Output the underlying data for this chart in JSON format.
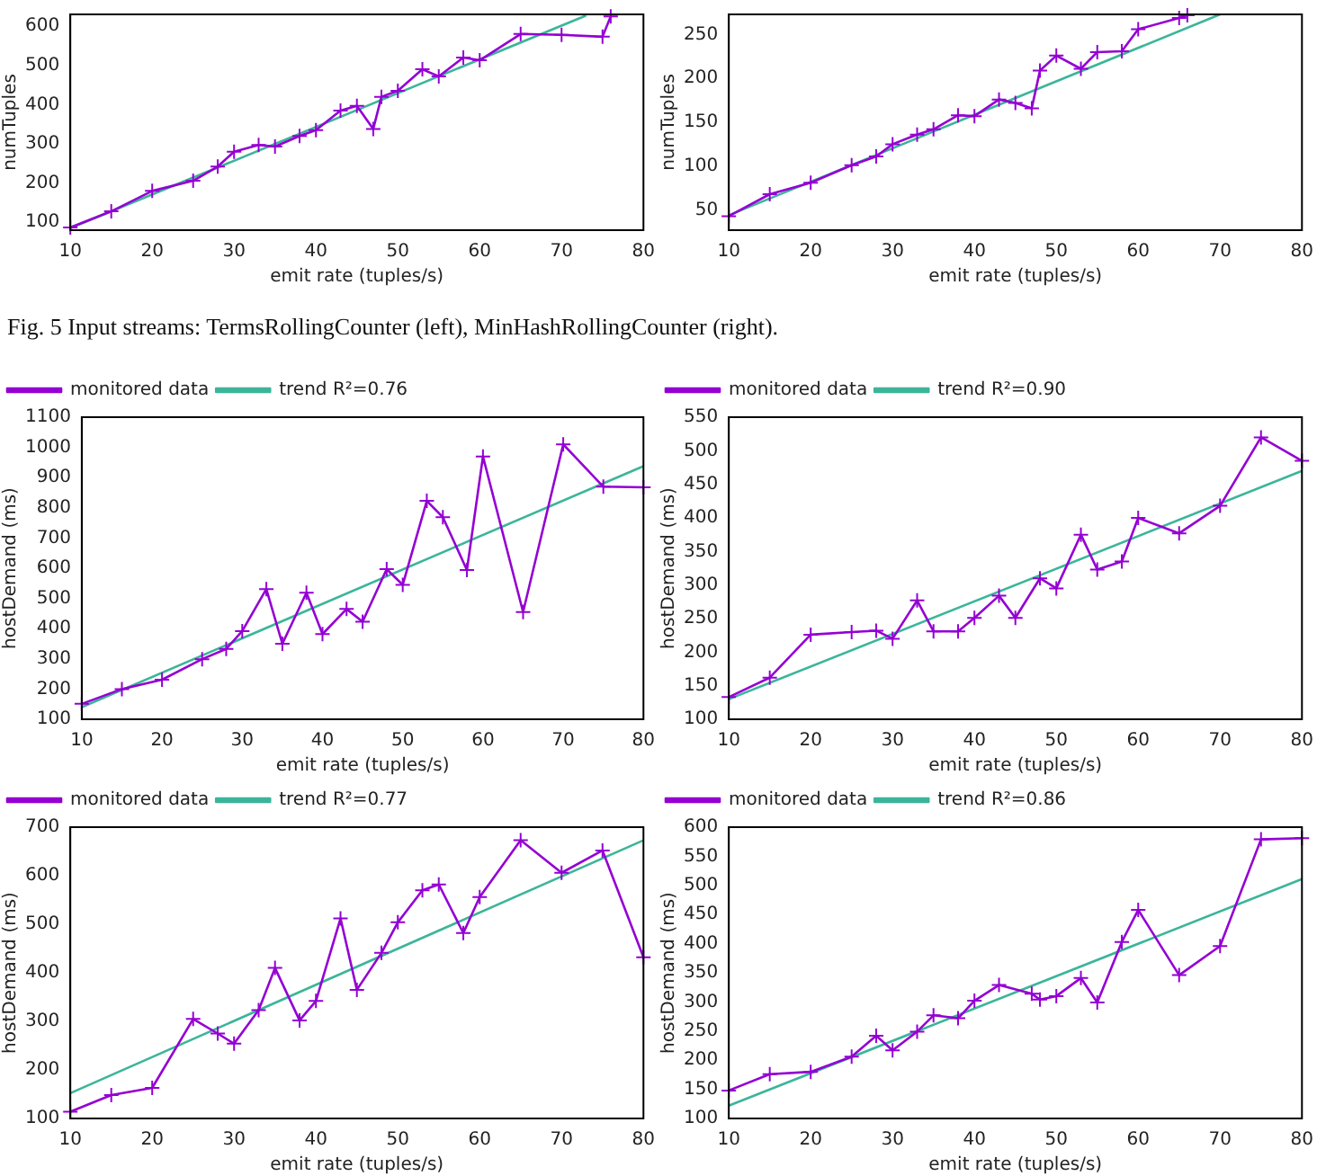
{
  "chart_data": [
    {
      "type": "line",
      "xlabel": "emit rate (tuples/s)",
      "ylabel": "numTuples",
      "xlim": [
        10,
        80
      ],
      "xticks": [
        10,
        20,
        30,
        40,
        50,
        60,
        70,
        80
      ],
      "ylim": [
        80,
        630
      ],
      "yticks": [
        100,
        200,
        300,
        400,
        500,
        600
      ],
      "grid": false,
      "legend": false,
      "line_style": "solid",
      "annotations": [
        "Fig. 5 Input streams: TermsRollingCounter (left), MinHashRollingCounter (right)."
      ],
      "series": [
        {
          "color": "#9400d3",
          "marker": "cross",
          "x": [
            10,
            15,
            20,
            25,
            28,
            30,
            33,
            35,
            38,
            40,
            43,
            45,
            47,
            48,
            50,
            53,
            55,
            58,
            60,
            65,
            70,
            75,
            76
          ],
          "values": [
            87,
            128,
            180,
            206,
            242,
            280,
            297,
            293,
            320,
            335,
            385,
            397,
            338,
            420,
            435,
            490,
            472,
            520,
            513,
            580,
            578,
            573,
            625
          ]
        },
        {
          "color": "#3cb59a",
          "marker": "none",
          "x": [
            10,
            73
          ],
          "values": [
            85,
            627
          ]
        }
      ]
    },
    {
      "type": "line",
      "xlabel": "emit rate (tuples/s)",
      "ylabel": "numTuples",
      "xlim": [
        10,
        80
      ],
      "xticks": [
        10,
        20,
        30,
        40,
        50,
        60,
        70,
        80
      ],
      "ylim": [
        27,
        273
      ],
      "yticks": [
        50,
        100,
        150,
        200,
        250
      ],
      "grid": false,
      "legend": false,
      "line_style": "solid",
      "series": [
        {
          "color": "#9400d3",
          "marker": "cross",
          "x": [
            10,
            15,
            20,
            25,
            28,
            30,
            33,
            35,
            38,
            40,
            43,
            45,
            47,
            48,
            50,
            53,
            55,
            58,
            60,
            65,
            66
          ],
          "values": [
            43,
            68,
            81,
            101,
            111,
            125,
            136,
            142,
            158,
            157,
            176,
            172,
            166,
            209,
            226,
            211,
            230,
            231,
            256,
            269,
            272
          ]
        },
        {
          "color": "#3cb59a",
          "marker": "none",
          "x": [
            10,
            70
          ],
          "values": [
            44,
            273
          ]
        }
      ]
    },
    {
      "type": "line",
      "xlabel": "emit rate (tuples/s)",
      "ylabel": "hostDemand (ms)",
      "xlim": [
        10,
        80
      ],
      "xticks": [
        10,
        20,
        30,
        40,
        50,
        60,
        70,
        80
      ],
      "ylim": [
        100,
        1100
      ],
      "yticks": [
        100,
        200,
        300,
        400,
        500,
        600,
        700,
        800,
        900,
        1000,
        1100
      ],
      "grid": false,
      "legend": "top left",
      "line_style": "solid",
      "series": [
        {
          "name": "monitored data",
          "color": "#9400d3",
          "marker": "cross",
          "x": [
            10,
            15,
            20,
            25,
            28,
            30,
            33,
            35,
            38,
            40,
            43,
            45,
            48,
            50,
            53,
            55,
            58,
            60,
            65,
            70,
            75,
            80
          ],
          "values": [
            151,
            200,
            231,
            299,
            333,
            392,
            531,
            350,
            519,
            382,
            465,
            423,
            597,
            545,
            823,
            769,
            594,
            970,
            455,
            1010,
            870,
            868
          ]
        },
        {
          "name": "trend R²=0.76",
          "color": "#3cb59a",
          "marker": "none",
          "x": [
            10,
            80
          ],
          "values": [
            140,
            938
          ]
        }
      ]
    },
    {
      "type": "line",
      "xlabel": "emit rate (tuples/s)",
      "ylabel": "hostDemand (ms)",
      "xlim": [
        10,
        80
      ],
      "xticks": [
        10,
        20,
        30,
        40,
        50,
        60,
        70,
        80
      ],
      "ylim": [
        100,
        550
      ],
      "yticks": [
        100,
        150,
        200,
        250,
        300,
        350,
        400,
        450,
        500,
        550
      ],
      "grid": false,
      "legend": "top left",
      "line_style": "solid",
      "series": [
        {
          "name": "monitored data",
          "color": "#9400d3",
          "marker": "cross",
          "x": [
            10,
            15,
            20,
            25,
            28,
            30,
            33,
            35,
            38,
            40,
            43,
            45,
            48,
            50,
            53,
            55,
            58,
            60,
            65,
            70,
            75,
            80
          ],
          "values": [
            133,
            162,
            226,
            230,
            232,
            220,
            277,
            231,
            231,
            251,
            284,
            251,
            310,
            295,
            375,
            323,
            335,
            400,
            377,
            418,
            520,
            485
          ]
        },
        {
          "name": "trend R²=0.90",
          "color": "#3cb59a",
          "marker": "none",
          "x": [
            10,
            80
          ],
          "values": [
            130,
            470
          ]
        }
      ]
    },
    {
      "type": "line",
      "xlabel": "emit rate (tuples/s)",
      "ylabel": "hostDemand (ms)",
      "xlim": [
        10,
        80
      ],
      "xticks": [
        10,
        20,
        30,
        40,
        50,
        60,
        70,
        80
      ],
      "ylim": [
        100,
        700
      ],
      "yticks": [
        100,
        200,
        300,
        400,
        500,
        600,
        700
      ],
      "grid": false,
      "legend": "top left",
      "line_style": "solid",
      "series": [
        {
          "name": "monitored data",
          "color": "#9400d3",
          "marker": "cross",
          "x": [
            10,
            15,
            20,
            25,
            28,
            30,
            33,
            35,
            38,
            40,
            43,
            45,
            48,
            50,
            53,
            55,
            58,
            60,
            65,
            70,
            75,
            80
          ],
          "values": [
            114,
            148,
            163,
            305,
            275,
            254,
            323,
            410,
            302,
            342,
            512,
            365,
            441,
            504,
            570,
            582,
            482,
            556,
            673,
            606,
            652,
            432
          ]
        },
        {
          "name": "trend R²=0.77",
          "color": "#3cb59a",
          "marker": "none",
          "x": [
            10,
            80
          ],
          "values": [
            152,
            673
          ]
        }
      ]
    },
    {
      "type": "line",
      "xlabel": "emit rate (tuples/s)",
      "ylabel": "hostDemand (ms)",
      "xlim": [
        10,
        80
      ],
      "xticks": [
        10,
        20,
        30,
        40,
        50,
        60,
        70,
        80
      ],
      "ylim": [
        100,
        600
      ],
      "yticks": [
        100,
        150,
        200,
        250,
        300,
        350,
        400,
        450,
        500,
        550,
        600
      ],
      "grid": false,
      "legend": "top left",
      "line_style": "solid",
      "series": [
        {
          "name": "monitored data",
          "color": "#9400d3",
          "marker": "cross",
          "x": [
            10,
            15,
            20,
            25,
            28,
            30,
            33,
            35,
            38,
            40,
            43,
            47,
            48,
            50,
            53,
            55,
            58,
            60,
            65,
            70,
            75,
            80
          ],
          "values": [
            148,
            176,
            180,
            206,
            242,
            217,
            249,
            277,
            272,
            302,
            329,
            314,
            304,
            310,
            341,
            299,
            403,
            458,
            346,
            396,
            579,
            581
          ]
        },
        {
          "name": "trend R²=0.86",
          "color": "#3cb59a",
          "marker": "none",
          "x": [
            10,
            80
          ],
          "values": [
            122,
            511
          ]
        }
      ]
    }
  ]
}
